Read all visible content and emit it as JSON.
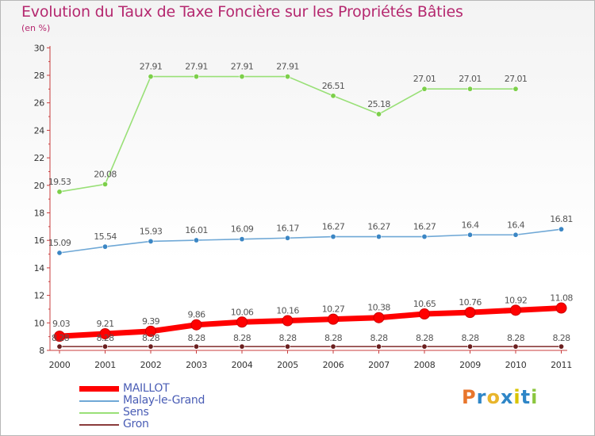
{
  "title": "Evolution du Taux de Taxe Foncière sur les Propriétés Bâties",
  "subtitle": "(en %)",
  "logo": {
    "text": "Proxiti",
    "letters": [
      "P",
      "r",
      "o",
      "x",
      "i",
      "t",
      "i"
    ],
    "colors": [
      "#e8762c",
      "#2f86c7",
      "#e8b52c",
      "#2f86c7",
      "#d9c400",
      "#2f86c7",
      "#8cc63f"
    ]
  },
  "chart_data": {
    "type": "line",
    "title": "Evolution du Taux de Taxe Foncière sur les Propriétés Bâties",
    "ylabel": "(en %)",
    "xlabel": "",
    "ylim": [
      8,
      30
    ],
    "yticks": [
      8,
      10,
      12,
      14,
      16,
      18,
      20,
      22,
      24,
      26,
      28,
      30
    ],
    "categories": [
      "2000",
      "2001",
      "2002",
      "2003",
      "2004",
      "2005",
      "2006",
      "2007",
      "2008",
      "2009",
      "2010",
      "2011"
    ],
    "series": [
      {
        "name": "MAILLOT",
        "color": "#ff0000",
        "marker": "#ff0000",
        "values": [
          9.03,
          9.21,
          9.39,
          9.86,
          10.06,
          10.16,
          10.27,
          10.38,
          10.65,
          10.76,
          10.92,
          11.08
        ],
        "labels": [
          "9.03",
          "9.21",
          "9.39",
          "9.86",
          "10.06",
          "10.16",
          "10.27",
          "10.38",
          "10.65",
          "10.76",
          "10.92",
          "11.08"
        ]
      },
      {
        "name": "Malay-le-Grand",
        "color": "#6fa8d6",
        "marker": "#3b86c4",
        "values": [
          15.09,
          15.54,
          15.93,
          16.01,
          16.09,
          16.17,
          16.27,
          16.27,
          16.27,
          16.4,
          16.4,
          16.81
        ],
        "labels": [
          "15.09",
          "15.54",
          "15.93",
          "16.01",
          "16.09",
          "16.17",
          "16.27",
          "16.27",
          "16.27",
          "16.4",
          "16.4",
          "16.81"
        ]
      },
      {
        "name": "Sens",
        "color": "#99e077",
        "marker": "#7ccf4a",
        "values": [
          19.53,
          20.08,
          27.91,
          27.91,
          27.91,
          27.91,
          26.51,
          25.18,
          27.01,
          27.01,
          27.01,
          null
        ],
        "labels": [
          "19.53",
          "20.08",
          "27.91",
          "27.91",
          "27.91",
          "27.91",
          "26.51",
          "25.18",
          "27.01",
          "27.01",
          "27.01",
          ""
        ]
      },
      {
        "name": "Gron",
        "color": "#8a3b3b",
        "marker": "#6b1f1f",
        "values": [
          8.28,
          8.28,
          8.28,
          8.28,
          8.28,
          8.28,
          8.28,
          8.28,
          8.28,
          8.28,
          8.28,
          8.28
        ],
        "labels": [
          "8.28",
          "8.28",
          "8.28",
          "8.28",
          "8.28",
          "8.28",
          "8.28",
          "8.28",
          "8.28",
          "8.28",
          "8.28",
          "8.28"
        ]
      }
    ],
    "legend": [
      "MAILLOT",
      "Malay-le-Grand",
      "Sens",
      "Gron"
    ],
    "grid": false
  }
}
